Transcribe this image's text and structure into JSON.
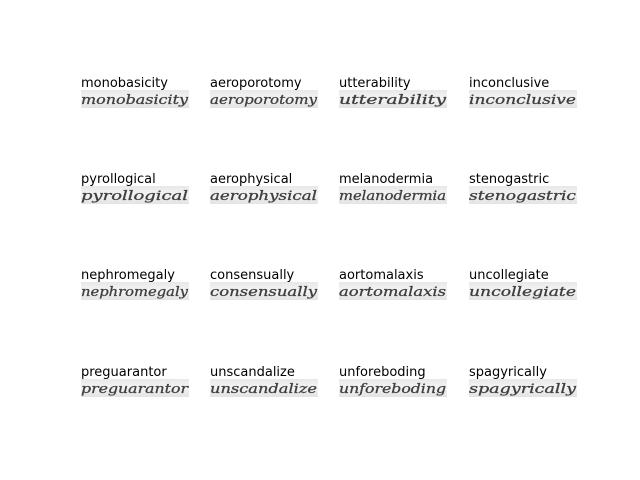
{
  "figure": {
    "samples": [
      {
        "word": "monobasicity",
        "handwriting": "monobasicity"
      },
      {
        "word": "aeroporotomy",
        "handwriting": "aeroporotomy"
      },
      {
        "word": "utterability",
        "handwriting": "utterability"
      },
      {
        "word": "inconclusive",
        "handwriting": "inconclusive"
      },
      {
        "word": "pyrollogical",
        "handwriting": "pyrollogical"
      },
      {
        "word": "aerophysical",
        "handwriting": "aerophysical"
      },
      {
        "word": "melanodermia",
        "handwriting": "melanodermia"
      },
      {
        "word": "stenogastric",
        "handwriting": "stenogastric"
      },
      {
        "word": "nephromegaly",
        "handwriting": "nephromegaly"
      },
      {
        "word": "consensually",
        "handwriting": "consensually"
      },
      {
        "word": "aortomalaxis",
        "handwriting": "aortomalaxis"
      },
      {
        "word": "uncollegiate",
        "handwriting": "uncollegiate"
      },
      {
        "word": "preguarantor",
        "handwriting": "preguarantor"
      },
      {
        "word": "unscandalize",
        "handwriting": "unscandalize"
      },
      {
        "word": "unforeboding",
        "handwriting": "unforeboding"
      },
      {
        "word": "spagyrically",
        "handwriting": "spagyrically"
      }
    ]
  }
}
